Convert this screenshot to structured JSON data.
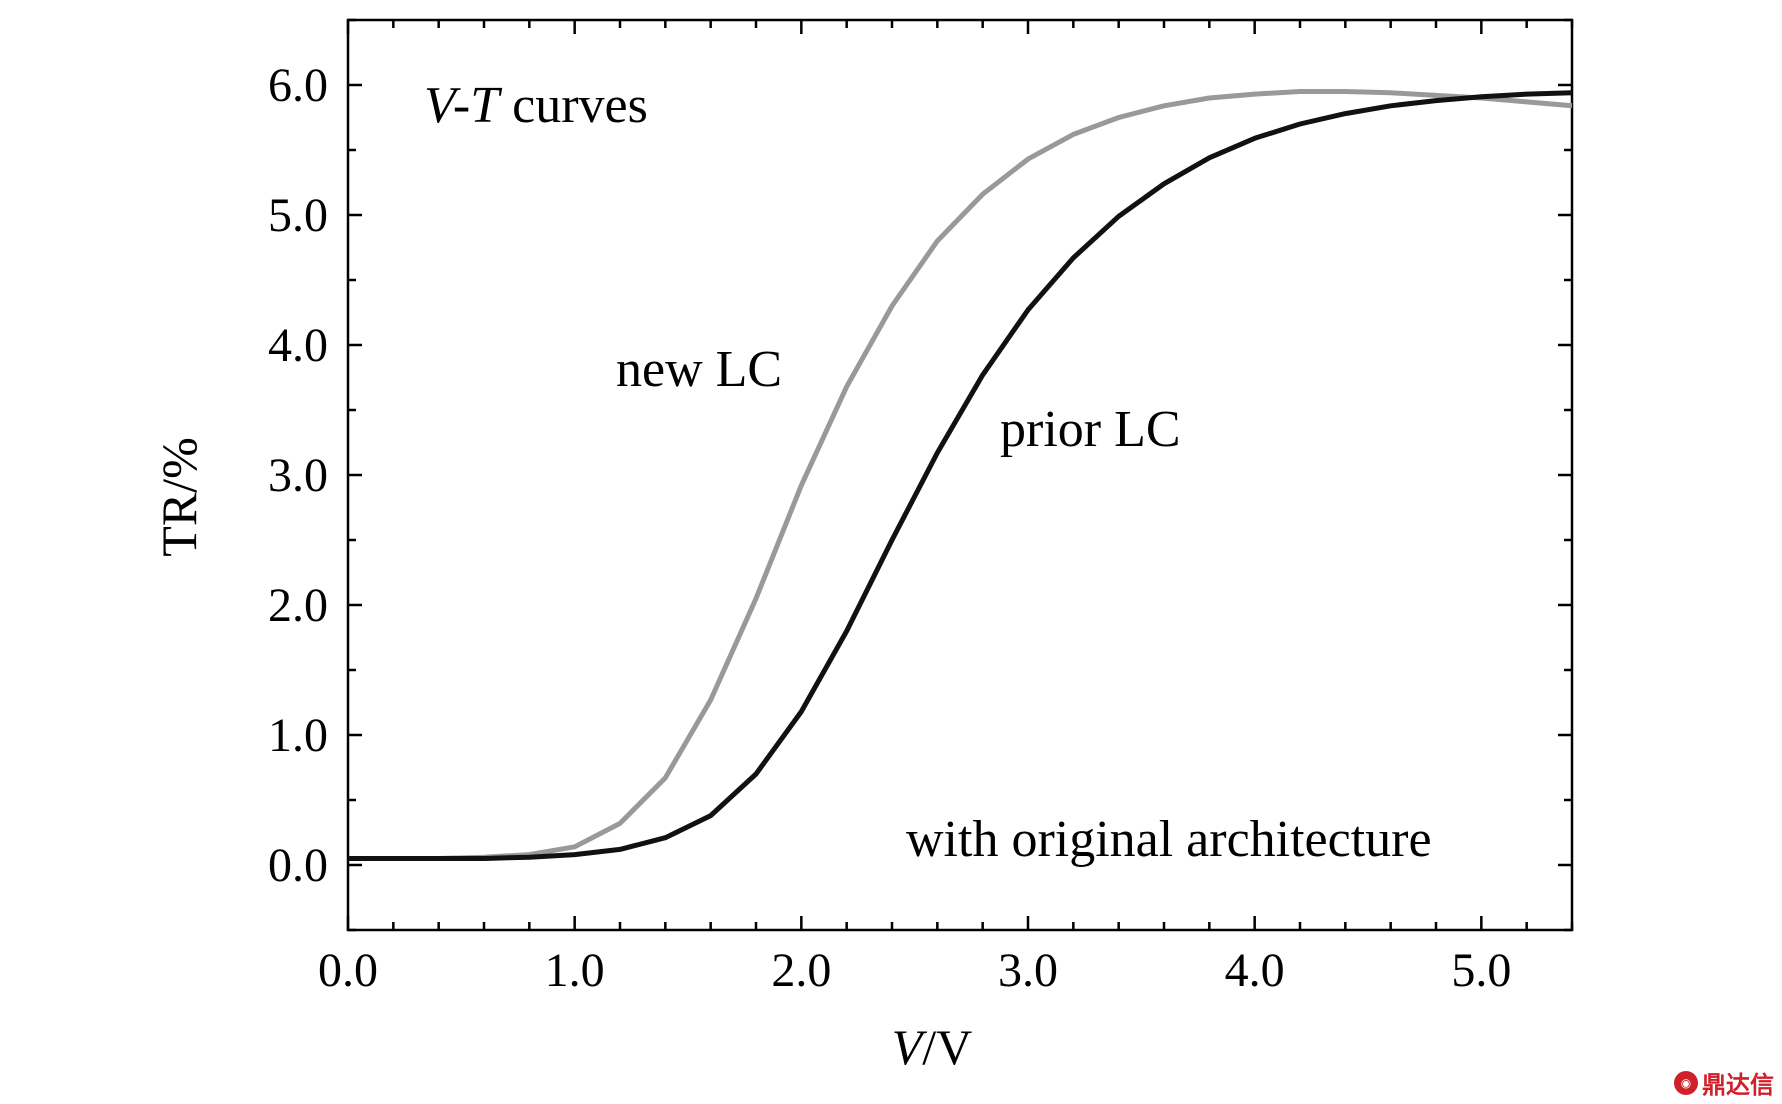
{
  "chart_data": {
    "type": "line",
    "title": "V-T curves",
    "title_parts": {
      "italic": "V-T",
      "rest": " curves"
    },
    "xlabel": "V/V",
    "xlabel_parts": {
      "italic": "V",
      "rest": "/V"
    },
    "ylabel": "TR/%",
    "xlim": [
      0.0,
      5.4
    ],
    "ylim": [
      -0.5,
      6.5
    ],
    "x_ticks": [
      "0.0",
      "1.0",
      "2.0",
      "3.0",
      "4.0",
      "5.0"
    ],
    "y_ticks": [
      "0.0",
      "1.0",
      "2.0",
      "3.0",
      "4.0",
      "5.0",
      "6.0"
    ],
    "grid": false,
    "annotations": {
      "new_lc": "new LC",
      "prior_lc": "prior LC",
      "architecture": "with original architecture"
    },
    "series": [
      {
        "name": "new LC",
        "color": "#999999",
        "x": [
          0.0,
          0.2,
          0.4,
          0.6,
          0.8,
          1.0,
          1.2,
          1.4,
          1.6,
          1.8,
          2.0,
          2.2,
          2.4,
          2.6,
          2.8,
          3.0,
          3.2,
          3.4,
          3.6,
          3.8,
          4.0,
          4.2,
          4.4,
          4.6,
          4.8,
          5.0,
          5.2,
          5.4
        ],
        "y": [
          0.05,
          0.05,
          0.05,
          0.06,
          0.08,
          0.14,
          0.32,
          0.67,
          1.27,
          2.05,
          2.92,
          3.68,
          4.3,
          4.8,
          5.16,
          5.43,
          5.62,
          5.75,
          5.84,
          5.9,
          5.93,
          5.95,
          5.95,
          5.94,
          5.92,
          5.9,
          5.87,
          5.84
        ]
      },
      {
        "name": "prior LC",
        "color": "#111111",
        "x": [
          0.0,
          0.2,
          0.4,
          0.6,
          0.8,
          1.0,
          1.2,
          1.4,
          1.6,
          1.8,
          2.0,
          2.2,
          2.4,
          2.6,
          2.8,
          3.0,
          3.2,
          3.4,
          3.6,
          3.8,
          4.0,
          4.2,
          4.4,
          4.6,
          4.8,
          5.0,
          5.2,
          5.4
        ],
        "y": [
          0.05,
          0.05,
          0.05,
          0.05,
          0.06,
          0.08,
          0.12,
          0.21,
          0.38,
          0.7,
          1.18,
          1.8,
          2.5,
          3.17,
          3.77,
          4.27,
          4.67,
          4.99,
          5.24,
          5.44,
          5.59,
          5.7,
          5.78,
          5.84,
          5.88,
          5.91,
          5.93,
          5.94
        ]
      }
    ]
  },
  "watermark": {
    "text": "鼎达信",
    "logo": "logo-icon"
  }
}
